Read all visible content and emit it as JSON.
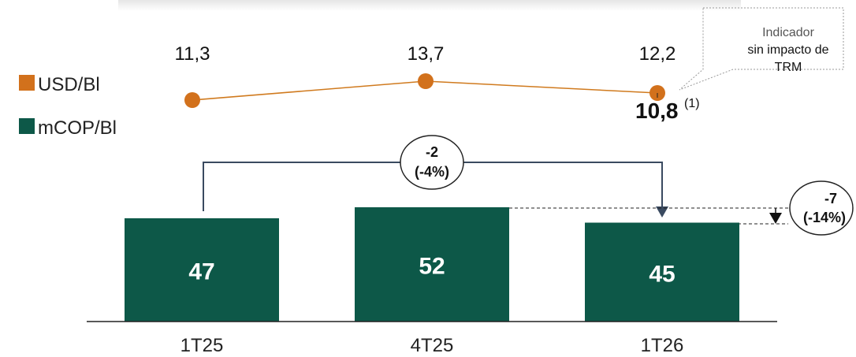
{
  "legend": {
    "usd_label": "USD/Bl",
    "mcop_label": "mCOP/Bl"
  },
  "colors": {
    "line": "#D07A1E",
    "marker": "#D2711C",
    "bar": "#0D5848",
    "bar_text": "#FFFFFF",
    "connector": "#3A4A60",
    "text": "#222222"
  },
  "callout": {
    "line1": "Indicador",
    "line2": "sin impacto de",
    "line3": "TRM"
  },
  "adjusted": {
    "value": "10,8",
    "note": "(1)"
  },
  "change_bubble_left": {
    "line1": "-2",
    "line2": "(-4%)"
  },
  "change_bubble_right": {
    "line1": "-7",
    "line2": "(-14%)"
  },
  "chart_data": [
    {
      "type": "line",
      "categories": [
        "1T25",
        "4T25",
        "1T26"
      ],
      "series": [
        {
          "name": "USD/Bl",
          "values": [
            11.3,
            13.7,
            12.2
          ],
          "labels": [
            "11,3",
            "13,7",
            "12,2"
          ]
        }
      ]
    },
    {
      "type": "bar",
      "categories": [
        "1T25",
        "4T25",
        "1T26"
      ],
      "series": [
        {
          "name": "mCOP/Bl",
          "values": [
            47,
            52,
            45
          ],
          "labels": [
            "47",
            "52",
            "45"
          ]
        }
      ]
    }
  ]
}
